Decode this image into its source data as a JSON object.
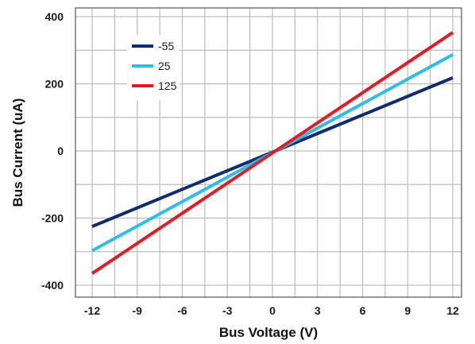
{
  "chart_data": {
    "type": "line",
    "title": "",
    "xlabel": "Bus Voltage (V)",
    "ylabel": "Bus Current (uA)",
    "xlim": [
      -12,
      12
    ],
    "ylim": [
      -400,
      400
    ],
    "x_ticks": [
      -12,
      -9,
      -6,
      -3,
      0,
      3,
      6,
      9,
      12
    ],
    "y_ticks": [
      -400,
      -200,
      0,
      200,
      400
    ],
    "x_tick_labels": [
      "-12",
      "-9",
      "-6",
      "-3",
      "0",
      "3",
      "6",
      "9",
      "12"
    ],
    "y_tick_labels": [
      "-400",
      "-200",
      "0",
      "200",
      "400"
    ],
    "grid": true,
    "legend_position": "top-left",
    "series": [
      {
        "name": "-55",
        "color": "#0f2d6b",
        "x": [
          -12,
          12
        ],
        "y": [
          -225,
          218
        ]
      },
      {
        "name": "25",
        "color": "#2ebde8",
        "x": [
          -12,
          12
        ],
        "y": [
          -297,
          287
        ]
      },
      {
        "name": "125",
        "color": "#e41b23",
        "x": [
          -12,
          12
        ],
        "y": [
          -365,
          353
        ]
      }
    ]
  }
}
